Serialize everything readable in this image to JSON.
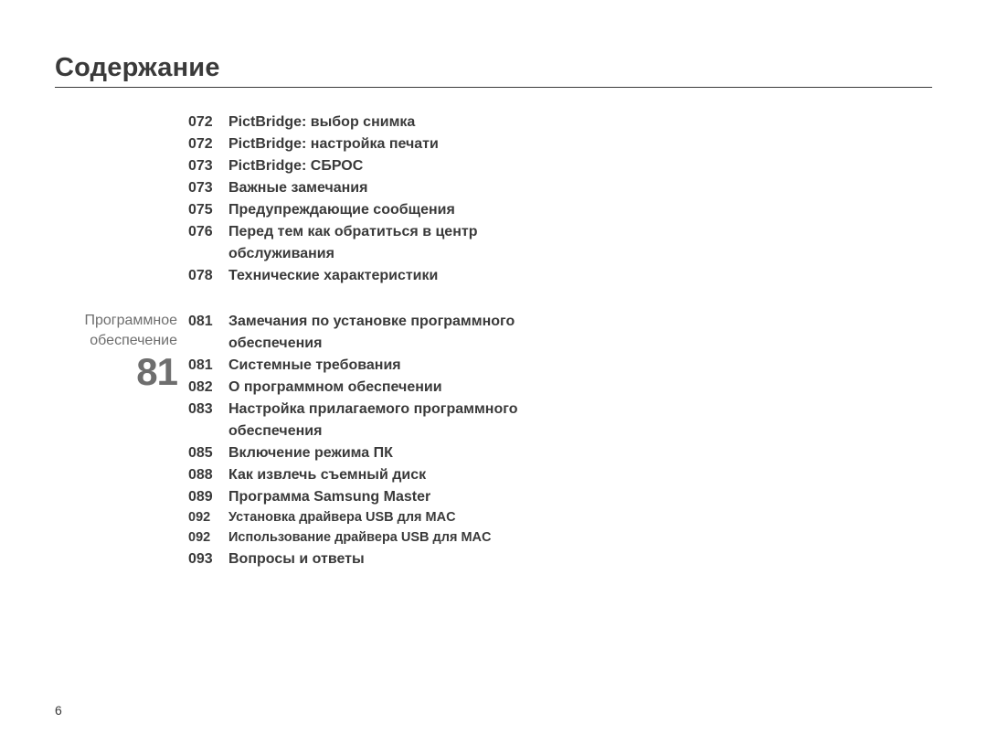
{
  "title": "Содержание",
  "page_number": "6",
  "text_color": "#3a3a3a",
  "side_color": "#6e6e6e",
  "background_color": "#ffffff",
  "title_fontsize": 29,
  "entry_fontsize": 16,
  "entry_fontsize_small": 14.5,
  "sections": [
    {
      "side_label": "",
      "side_num": "",
      "entries": [
        {
          "num": "072",
          "text": "PictBridge: выбор снимка",
          "small": false
        },
        {
          "num": "072",
          "text": "PictBridge: настройка печати",
          "small": false
        },
        {
          "num": "073",
          "text": "PictBridge: СБРОС",
          "small": false
        },
        {
          "num": "073",
          "text": "Важные замечания",
          "small": false
        },
        {
          "num": "075",
          "text": "Предупреждающие сообщения",
          "small": false
        },
        {
          "num": "076",
          "text": "Перед тем как обратиться в центр обслуживания",
          "small": false
        },
        {
          "num": "078",
          "text": "Технические характеристики",
          "small": false
        }
      ]
    },
    {
      "side_label": "Программное обеспечение",
      "side_num": "81",
      "entries": [
        {
          "num": "081",
          "text": "Замечания по установке программного обеспечения",
          "small": false
        },
        {
          "num": "081",
          "text": "Системные требования",
          "small": false
        },
        {
          "num": "082",
          "text": "О программном обеспечении",
          "small": false
        },
        {
          "num": "083",
          "text": "Настройка прилагаемого программного обеспечения",
          "small": false
        },
        {
          "num": "085",
          "text": "Включение режима ПК",
          "small": false
        },
        {
          "num": "088",
          "text": "Как извлечь съемный диск",
          "small": false
        },
        {
          "num": "089",
          "text": "Программа Samsung Master",
          "small": false
        },
        {
          "num": "092",
          "text": "Установка драйвера USB для MAC",
          "small": true
        },
        {
          "num": "092",
          "text": "Использование драйвера USB для MAC",
          "small": true
        },
        {
          "num": "093",
          "text": "Вопросы и ответы",
          "small": false
        }
      ]
    }
  ]
}
